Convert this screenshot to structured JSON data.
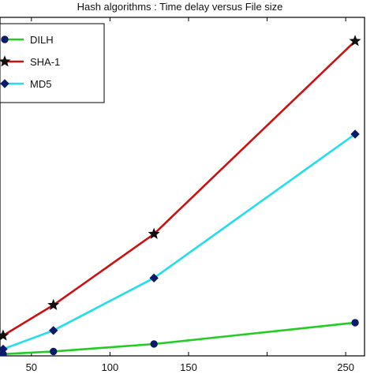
{
  "chart_data": {
    "type": "line",
    "title": "Hash algorithms : Time delay versus File size",
    "xlabel": "",
    "ylabel": "",
    "xlim": [
      30,
      262
    ],
    "ylim": [
      0,
      100
    ],
    "x_ticks": [
      {
        "value": 50,
        "label": "50"
      },
      {
        "value": 100,
        "label": "100"
      },
      {
        "value": 150,
        "label": "150"
      },
      {
        "value": 200,
        "label": ""
      },
      {
        "value": 250,
        "label": "250"
      }
    ],
    "legend_position": "top-left",
    "grid": false,
    "series": [
      {
        "name": "DILH",
        "color": "#22cc22",
        "marker": "circle",
        "points": [
          [
            32,
            0.5
          ],
          [
            64,
            1.3
          ],
          [
            128,
            3.5
          ],
          [
            256,
            9.8
          ]
        ]
      },
      {
        "name": "SHA-1",
        "color": "#cc1111",
        "marker": "star",
        "points": [
          [
            32,
            6.0
          ],
          [
            64,
            15.0
          ],
          [
            128,
            36.0
          ],
          [
            256,
            93.0
          ]
        ]
      },
      {
        "name": "MD5",
        "color": "#22ddee",
        "marker": "diamond",
        "points": [
          [
            32,
            2.0
          ],
          [
            64,
            7.5
          ],
          [
            128,
            23.0
          ],
          [
            256,
            65.5
          ]
        ]
      }
    ]
  }
}
